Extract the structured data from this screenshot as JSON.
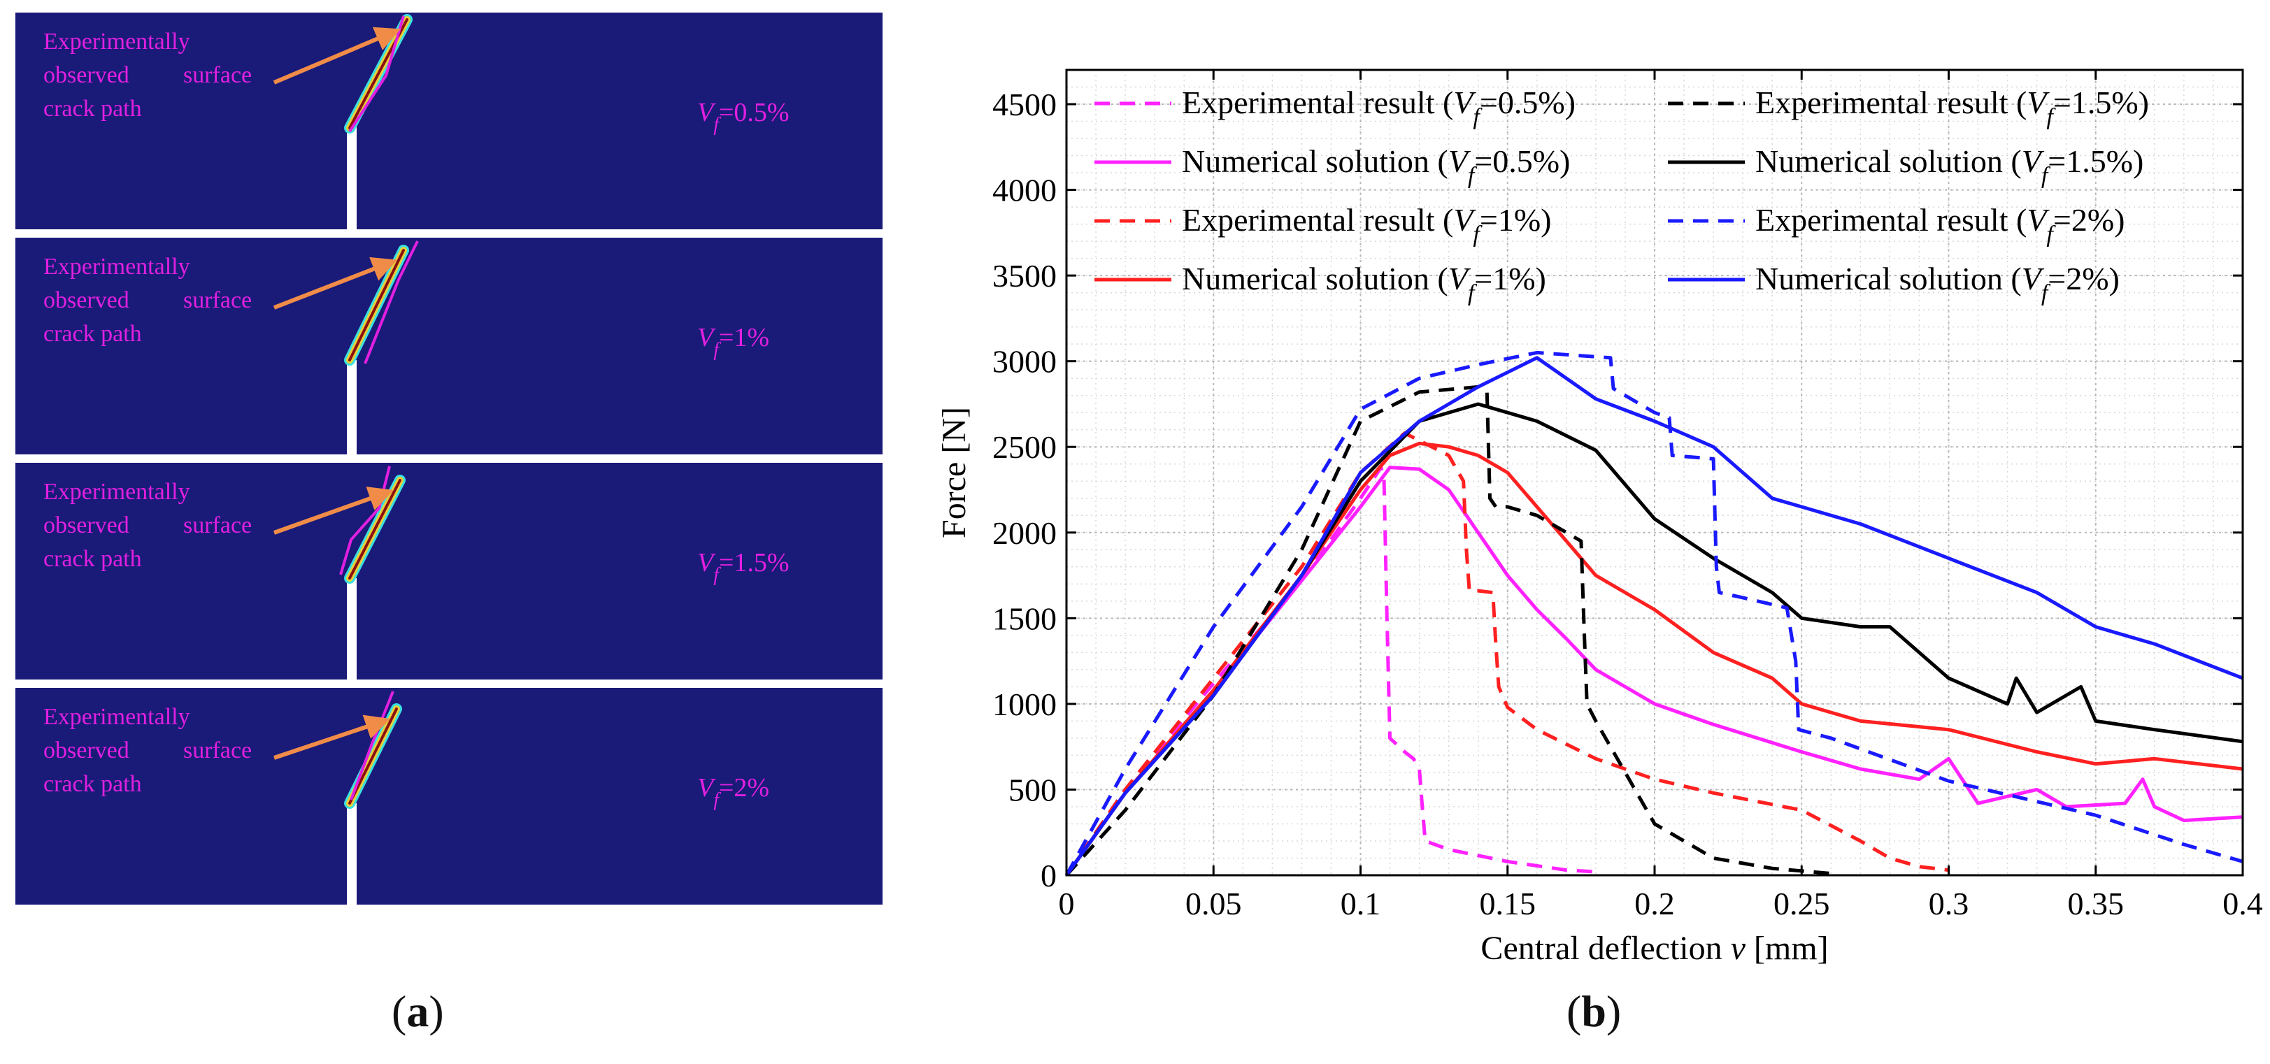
{
  "panel_a": {
    "caption_label": "a",
    "panels": [
      {
        "annotation": [
          "Experimentally",
          "observed",
          "surface",
          "crack path"
        ],
        "vf_symbol": "V",
        "vf_sub": "f",
        "vf_value": "=0.5%"
      },
      {
        "annotation": [
          "Experimentally",
          "observed",
          "surface",
          "crack path"
        ],
        "vf_symbol": "V",
        "vf_sub": "f",
        "vf_value": "=1%"
      },
      {
        "annotation": [
          "Experimentally",
          "observed",
          "surface",
          "crack path"
        ],
        "vf_symbol": "V",
        "vf_sub": "f",
        "vf_value": "=1.5%"
      },
      {
        "annotation": [
          "Experimentally",
          "observed",
          "surface",
          "crack path"
        ],
        "vf_symbol": "V",
        "vf_sub": "f",
        "vf_value": "=2%"
      }
    ],
    "colors": {
      "background": "#1a1a78",
      "annotation": "#e020e0",
      "arrow": "#f08c48",
      "notch": "#ffffff"
    }
  },
  "panel_b": {
    "caption_label": "b"
  },
  "chart_data": {
    "type": "line",
    "title": "",
    "xlabel": "Central deflection ",
    "xlabel_var": "v",
    "xlabel_unit": " [mm]",
    "ylabel": "Force [N]",
    "xlim": [
      0,
      0.4
    ],
    "ylim": [
      0,
      4700
    ],
    "xticks": [
      0,
      0.05,
      0.1,
      0.15,
      0.2,
      0.25,
      0.3,
      0.35,
      0.4
    ],
    "xtick_labels": [
      "0",
      "0.05",
      "0.1",
      "0.15",
      "0.2",
      "0.25",
      "0.3",
      "0.35",
      "0.4"
    ],
    "yticks": [
      0,
      500,
      1000,
      1500,
      2000,
      2500,
      3000,
      3500,
      4000,
      4500
    ],
    "ytick_labels": [
      "0",
      "500",
      "1000",
      "1500",
      "2000",
      "2500",
      "3000",
      "3500",
      "4000",
      "4500"
    ],
    "grid": true,
    "legend_position": "top",
    "series": [
      {
        "name_prefix": "Experimental result (",
        "name_var": "V",
        "name_sub": "f",
        "name_value": "=0.5%)",
        "color": "#ff22ff",
        "style": "dashed",
        "x": [
          0,
          0.02,
          0.05,
          0.08,
          0.1,
          0.107,
          0.108,
          0.109,
          0.11,
          0.115,
          0.118,
          0.12,
          0.121,
          0.122,
          0.13,
          0.15,
          0.17,
          0.18
        ],
        "y": [
          0,
          500,
          1120,
          1720,
          2200,
          2380,
          2300,
          1500,
          800,
          720,
          680,
          620,
          400,
          200,
          150,
          80,
          30,
          20
        ]
      },
      {
        "name_prefix": "Numerical solution (",
        "name_var": "V",
        "name_sub": "f",
        "name_value": "=0.5%)",
        "color": "#ff22ff",
        "style": "solid",
        "x": [
          0,
          0.02,
          0.05,
          0.08,
          0.1,
          0.11,
          0.12,
          0.13,
          0.14,
          0.15,
          0.16,
          0.17,
          0.18,
          0.2,
          0.22,
          0.25,
          0.27,
          0.29,
          0.3,
          0.31,
          0.33,
          0.34,
          0.36,
          0.366,
          0.37,
          0.38,
          0.4
        ],
        "y": [
          0,
          480,
          1080,
          1720,
          2150,
          2380,
          2370,
          2250,
          2000,
          1750,
          1550,
          1380,
          1200,
          1000,
          880,
          720,
          620,
          560,
          680,
          420,
          500,
          400,
          420,
          560,
          400,
          320,
          340
        ]
      },
      {
        "name_prefix": "Experimental result (",
        "name_var": "V",
        "name_sub": "f",
        "name_value": "=1%)",
        "color": "#ff2020",
        "style": "dashed",
        "x": [
          0,
          0.02,
          0.05,
          0.08,
          0.1,
          0.115,
          0.13,
          0.135,
          0.136,
          0.137,
          0.14,
          0.145,
          0.146,
          0.147,
          0.15,
          0.16,
          0.18,
          0.2,
          0.22,
          0.25,
          0.27,
          0.28,
          0.29,
          0.3
        ],
        "y": [
          0,
          500,
          1150,
          1800,
          2350,
          2580,
          2450,
          2300,
          1900,
          1660,
          1660,
          1650,
          1350,
          1100,
          980,
          850,
          680,
          560,
          480,
          380,
          200,
          100,
          50,
          30
        ]
      },
      {
        "name_prefix": "Numerical solution (",
        "name_var": "V",
        "name_sub": "f",
        "name_value": "=1%)",
        "color": "#ff2020",
        "style": "solid",
        "x": [
          0,
          0.02,
          0.05,
          0.08,
          0.1,
          0.11,
          0.12,
          0.13,
          0.14,
          0.15,
          0.16,
          0.17,
          0.18,
          0.19,
          0.2,
          0.22,
          0.24,
          0.25,
          0.27,
          0.3,
          0.33,
          0.35,
          0.37,
          0.4
        ],
        "y": [
          0,
          480,
          1080,
          1750,
          2250,
          2450,
          2520,
          2500,
          2450,
          2350,
          2150,
          1950,
          1750,
          1650,
          1550,
          1300,
          1150,
          1000,
          900,
          850,
          720,
          650,
          680,
          620
        ]
      },
      {
        "name_prefix": "Experimental result (",
        "name_var": "V",
        "name_sub": "f",
        "name_value": "=1.5%)",
        "color": "#000000",
        "style": "dashed",
        "x": [
          0,
          0.02,
          0.05,
          0.08,
          0.1,
          0.12,
          0.14,
          0.143,
          0.144,
          0.146,
          0.15,
          0.16,
          0.175,
          0.176,
          0.177,
          0.18,
          0.2,
          0.22,
          0.24,
          0.26
        ],
        "y": [
          0,
          380,
          1050,
          1900,
          2650,
          2820,
          2850,
          2820,
          2200,
          2150,
          2150,
          2100,
          1950,
          1450,
          1000,
          900,
          300,
          100,
          40,
          10
        ]
      },
      {
        "name_prefix": "Numerical solution (",
        "name_var": "V",
        "name_sub": "f",
        "name_value": "=1.5%)",
        "color": "#000000",
        "style": "solid",
        "x": [
          0,
          0.02,
          0.05,
          0.08,
          0.1,
          0.12,
          0.14,
          0.15,
          0.16,
          0.18,
          0.2,
          0.22,
          0.24,
          0.25,
          0.27,
          0.28,
          0.3,
          0.32,
          0.323,
          0.33,
          0.345,
          0.35,
          0.37,
          0.4
        ],
        "y": [
          0,
          480,
          1050,
          1750,
          2300,
          2650,
          2750,
          2700,
          2650,
          2480,
          2080,
          1850,
          1650,
          1500,
          1450,
          1450,
          1150,
          1000,
          1150,
          950,
          1100,
          900,
          850,
          780
        ]
      },
      {
        "name_prefix": "Experimental result (",
        "name_var": "V",
        "name_sub": "f",
        "name_value": "=2%)",
        "color": "#1a1aff",
        "style": "dashed",
        "x": [
          0,
          0.02,
          0.05,
          0.08,
          0.1,
          0.12,
          0.14,
          0.16,
          0.185,
          0.186,
          0.2,
          0.205,
          0.206,
          0.22,
          0.221,
          0.222,
          0.23,
          0.245,
          0.248,
          0.249,
          0.26,
          0.3,
          0.35,
          0.38,
          0.4
        ],
        "y": [
          0,
          620,
          1450,
          2150,
          2720,
          2900,
          2980,
          3050,
          3020,
          2840,
          2700,
          2670,
          2450,
          2430,
          1800,
          1650,
          1620,
          1560,
          1250,
          850,
          800,
          550,
          350,
          180,
          80
        ]
      },
      {
        "name_prefix": "Numerical solution (",
        "name_var": "V",
        "name_sub": "f",
        "name_value": "=2%)",
        "color": "#1a1aff",
        "style": "solid",
        "x": [
          0,
          0.02,
          0.05,
          0.08,
          0.1,
          0.12,
          0.14,
          0.16,
          0.17,
          0.18,
          0.2,
          0.22,
          0.24,
          0.25,
          0.27,
          0.3,
          0.33,
          0.35,
          0.37,
          0.4
        ],
        "y": [
          0,
          480,
          1050,
          1750,
          2350,
          2650,
          2850,
          3020,
          2900,
          2780,
          2650,
          2500,
          2200,
          2150,
          2050,
          1850,
          1650,
          1450,
          1350,
          1150
        ]
      }
    ]
  }
}
